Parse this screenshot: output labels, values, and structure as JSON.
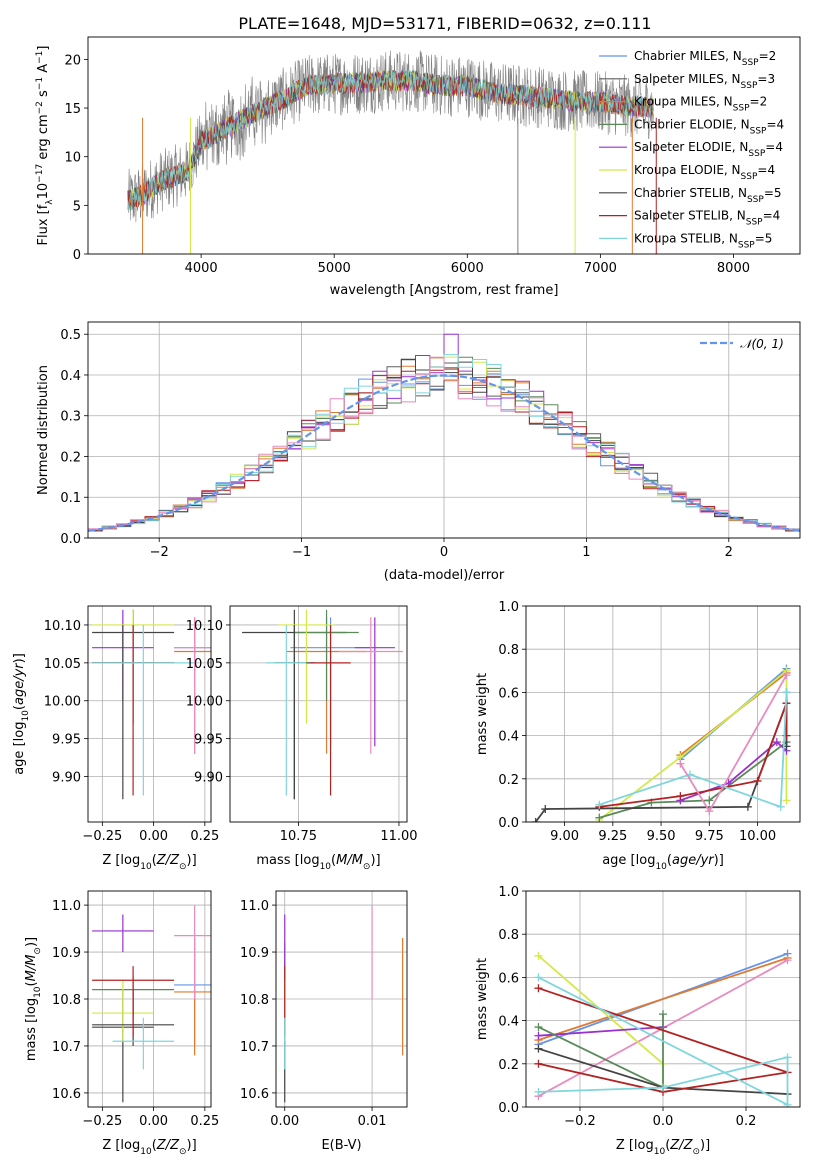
{
  "title": "PLATE=1648, MJD=53171, FIBERID=0632, z=0.111",
  "colors": {
    "chabrier_miles": "#6495ed",
    "salpeter_miles": "#5f5f5f",
    "kroupa_miles": "#e07a30",
    "chabrier_elodie": "#5a8a5a",
    "salpeter_elodie": "#9932cc",
    "kroupa_elodie": "#d4e84a",
    "chabrier_stelib": "#444444",
    "salpeter_stelib": "#b22222",
    "kroupa_stelib": "#7fd6dc",
    "pink": "#e88bbf",
    "normal": "#6495ed"
  },
  "chart_data": [
    {
      "id": "spectrum",
      "type": "line",
      "xlabel": "wavelength [Angstrom, rest frame]",
      "ylabel": "Flux [f$_\\lambda$10$^{-17}$ erg cm$^{-2}$ s$^{-1}$ A$^{-1}$]",
      "xlim": [
        3150,
        8500
      ],
      "ylim": [
        0,
        22.3
      ],
      "xticks": [
        4000,
        5000,
        6000,
        7000,
        8000
      ],
      "yticks": [
        0,
        5,
        10,
        15,
        20
      ],
      "legend": [
        {
          "label": "Chabrier MILES, N",
          "sub": "SSP",
          "tail": "=2",
          "color": "#6495ed"
        },
        {
          "label": "Salpeter MILES, N",
          "sub": "SSP",
          "tail": "=3",
          "color": "#5f5f5f"
        },
        {
          "label": "Kroupa MILES, N",
          "sub": "SSP",
          "tail": "=2",
          "color": "#e07a30"
        },
        {
          "label": "Chabrier ELODIE, N",
          "sub": "SSP",
          "tail": "=4",
          "color": "#5a8a5a"
        },
        {
          "label": "Salpeter ELODIE, N",
          "sub": "SSP",
          "tail": "=4",
          "color": "#9932cc"
        },
        {
          "label": "Kroupa ELODIE, N",
          "sub": "SSP",
          "tail": "=4",
          "color": "#d4e84a"
        },
        {
          "label": "Chabrier STELIB, N",
          "sub": "SSP",
          "tail": "=5",
          "color": "#444444"
        },
        {
          "label": "Salpeter STELIB, N",
          "sub": "SSP",
          "tail": "=4",
          "color": "#b22222"
        },
        {
          "label": "Kroupa STELIB, N",
          "sub": "SSP",
          "tail": "=5",
          "color": "#7fd6dc"
        }
      ],
      "continuum": [
        [
          3450,
          5.5
        ],
        [
          3550,
          6.0
        ],
        [
          3700,
          7.5
        ],
        [
          3800,
          8.0
        ],
        [
          3900,
          8.5
        ],
        [
          4000,
          11.5
        ],
        [
          4200,
          13.0
        ],
        [
          4400,
          14.5
        ],
        [
          4600,
          15.8
        ],
        [
          4800,
          17.3
        ],
        [
          5000,
          17.5
        ],
        [
          5200,
          17.6
        ],
        [
          5400,
          17.8
        ],
        [
          5600,
          17.8
        ],
        [
          5800,
          17.3
        ],
        [
          6000,
          17.3
        ],
        [
          6200,
          16.6
        ],
        [
          6400,
          16.3
        ],
        [
          6600,
          16.1
        ],
        [
          6800,
          15.7
        ],
        [
          7000,
          15.6
        ],
        [
          7200,
          15.2
        ],
        [
          7400,
          15.0
        ]
      ]
    },
    {
      "id": "residuals",
      "type": "line",
      "xlabel": "(data-model)/error",
      "ylabel": "Normed distribution",
      "xlim": [
        -2.5,
        2.5
      ],
      "ylim": [
        0,
        0.53
      ],
      "xticks": [
        -2,
        -1,
        0,
        1,
        2
      ],
      "yticks": [
        0.0,
        0.1,
        0.2,
        0.3,
        0.4,
        0.5
      ],
      "legend_label": "N(0,1)"
    },
    {
      "id": "age_vs_Z",
      "type": "scatter",
      "xlabel": "Z [log10(Z/Z⊙)]",
      "ylabel": "age  [log10(age/yr)]",
      "xlim": [
        -0.32,
        0.28
      ],
      "ylim": [
        9.84,
        10.125
      ],
      "xticks": [
        -0.25,
        0.0,
        0.25
      ],
      "yticks": [
        9.9,
        9.95,
        10.0,
        10.05,
        10.1
      ],
      "points": [
        {
          "x": 0.2,
          "y": 10.07,
          "xerr": 0.1,
          "ylo": 9.94,
          "yhi": 10.11,
          "color": "#6495ed"
        },
        {
          "x": -0.1,
          "y": 10.09,
          "xerr": 0.2,
          "ylo": 9.97,
          "yhi": 10.12,
          "color": "#444444"
        },
        {
          "x": 0.2,
          "y": 10.065,
          "xerr": 0.1,
          "ylo": 9.93,
          "yhi": 10.11,
          "color": "#e07a30"
        },
        {
          "x": -0.1,
          "y": 10.05,
          "xerr": 0.2,
          "ylo": 10.0,
          "yhi": 10.12,
          "color": "#5a8a5a"
        },
        {
          "x": -0.15,
          "y": 10.07,
          "xerr": 0.15,
          "ylo": 10.0,
          "yhi": 10.12,
          "color": "#9932cc"
        },
        {
          "x": -0.1,
          "y": 10.1,
          "xerr": 0.2,
          "ylo": 9.97,
          "yhi": 10.12,
          "color": "#d4e84a"
        },
        {
          "x": -0.15,
          "y": 10.05,
          "xerr": 0.15,
          "ylo": 9.87,
          "yhi": 10.1,
          "color": "#444444"
        },
        {
          "x": -0.1,
          "y": 10.05,
          "xerr": 0.2,
          "ylo": 9.875,
          "yhi": 10.1,
          "color": "#b22222"
        },
        {
          "x": -0.05,
          "y": 10.05,
          "xerr": 0.25,
          "ylo": 9.875,
          "yhi": 10.1,
          "color": "#7fd6dc"
        },
        {
          "x": 0.2,
          "y": 10.07,
          "xerr": 0.1,
          "ylo": 9.93,
          "yhi": 10.11,
          "color": "#e88bbf"
        }
      ]
    },
    {
      "id": "age_vs_mass",
      "type": "scatter",
      "xlabel": "mass [log10(M/M⊙)]",
      "ylabel": "",
      "xlim": [
        10.58,
        11.02
      ],
      "ylim": [
        9.84,
        10.125
      ],
      "xticks": [
        10.75,
        11.0
      ],
      "yticks": [
        9.9,
        9.95,
        10.0,
        10.05,
        10.1
      ],
      "points": [
        {
          "x": 10.83,
          "y": 10.07,
          "xerr": 0.1,
          "ylo": 9.94,
          "yhi": 10.11,
          "color": "#6495ed"
        },
        {
          "x": 10.74,
          "y": 10.09,
          "xerr": 0.13,
          "ylo": 9.87,
          "yhi": 10.12,
          "color": "#444444"
        },
        {
          "x": 10.82,
          "y": 10.065,
          "xerr": 0.1,
          "ylo": 9.93,
          "yhi": 10.11,
          "color": "#e07a30"
        },
        {
          "x": 10.82,
          "y": 10.09,
          "xerr": 0.08,
          "ylo": 10.0,
          "yhi": 10.12,
          "color": "#5a8a5a"
        },
        {
          "x": 10.94,
          "y": 10.07,
          "xerr": 0.05,
          "ylo": 9.94,
          "yhi": 10.11,
          "color": "#9932cc"
        },
        {
          "x": 10.77,
          "y": 10.1,
          "xerr": 0.07,
          "ylo": 9.97,
          "yhi": 10.12,
          "color": "#d4e84a"
        },
        {
          "x": 10.74,
          "y": 10.05,
          "xerr": 0.05,
          "ylo": 9.87,
          "yhi": 10.1,
          "color": "#444444"
        },
        {
          "x": 10.83,
          "y": 10.05,
          "xerr": 0.05,
          "ylo": 9.875,
          "yhi": 10.1,
          "color": "#b22222"
        },
        {
          "x": 10.72,
          "y": 10.05,
          "xerr": 0.05,
          "ylo": 9.875,
          "yhi": 10.1,
          "color": "#7fd6dc"
        },
        {
          "x": 10.93,
          "y": 10.065,
          "xerr": 0.08,
          "ylo": 9.93,
          "yhi": 10.11,
          "color": "#e88bbf"
        }
      ]
    },
    {
      "id": "massweight_vs_age",
      "type": "line",
      "xlabel": "age  [log10(age/yr)]",
      "ylabel": "mass weight",
      "xlim": [
        8.8,
        10.22
      ],
      "ylim": [
        0.0,
        1.0
      ],
      "xticks": [
        9.0,
        9.25,
        9.5,
        9.75,
        10.0
      ],
      "yticks": [
        0.0,
        0.2,
        0.4,
        0.6,
        0.8,
        1.0
      ],
      "series": [
        {
          "color": "#6495ed",
          "x": [
            9.6,
            10.15
          ],
          "y": [
            0.29,
            0.71
          ]
        },
        {
          "color": "#e07a30",
          "x": [
            9.6,
            10.15
          ],
          "y": [
            0.31,
            0.69
          ]
        },
        {
          "color": "#d4e84a",
          "x": [
            9.18,
            9.6,
            10.15,
            10.15
          ],
          "y": [
            0.01,
            0.3,
            0.7,
            0.1
          ]
        },
        {
          "color": "#5a8a5a",
          "x": [
            9.18,
            9.45,
            9.75,
            10.15,
            10.15
          ],
          "y": [
            0.02,
            0.09,
            0.1,
            0.37,
            0.6
          ]
        },
        {
          "color": "#9932cc",
          "x": [
            9.6,
            9.85,
            10.1,
            10.15
          ],
          "y": [
            0.1,
            0.18,
            0.37,
            0.33
          ]
        },
        {
          "color": "#444444",
          "x": [
            8.85,
            8.9,
            9.95,
            10.15,
            10.15
          ],
          "y": [
            0.0,
            0.06,
            0.07,
            0.55,
            0.35
          ]
        },
        {
          "color": "#b22222",
          "x": [
            9.18,
            9.6,
            10.0,
            10.15,
            10.15
          ],
          "y": [
            0.07,
            0.12,
            0.19,
            0.55,
            0.4
          ]
        },
        {
          "color": "#7fd6dc",
          "x": [
            9.18,
            9.65,
            10.12,
            10.15
          ],
          "y": [
            0.08,
            0.22,
            0.07,
            0.6
          ]
        },
        {
          "color": "#e88bbf",
          "x": [
            9.6,
            9.75,
            10.15
          ],
          "y": [
            0.27,
            0.05,
            0.68
          ]
        }
      ]
    },
    {
      "id": "mass_vs_Z",
      "type": "scatter",
      "xlabel": "Z [log10(Z/Z⊙)]",
      "ylabel": "mass [log10(M/M⊙)]",
      "xlim": [
        -0.32,
        0.28
      ],
      "ylim": [
        10.57,
        11.03
      ],
      "xticks": [
        -0.25,
        0.0,
        0.25
      ],
      "yticks": [
        10.6,
        10.7,
        10.8,
        10.9,
        11.0
      ],
      "points": [
        {
          "x": 0.2,
          "y": 10.83,
          "xerr": 0.1,
          "ylo": 10.7,
          "yhi": 10.92,
          "color": "#6495ed"
        },
        {
          "x": -0.15,
          "y": 10.74,
          "xerr": 0.15,
          "ylo": 10.58,
          "yhi": 10.82,
          "color": "#444444"
        },
        {
          "x": 0.2,
          "y": 10.815,
          "xerr": 0.1,
          "ylo": 10.68,
          "yhi": 10.93,
          "color": "#e07a30"
        },
        {
          "x": -0.1,
          "y": 10.82,
          "xerr": 0.2,
          "ylo": 10.76,
          "yhi": 10.85,
          "color": "#5a8a5a"
        },
        {
          "x": -0.15,
          "y": 10.945,
          "xerr": 0.15,
          "ylo": 10.9,
          "yhi": 10.98,
          "color": "#9932cc"
        },
        {
          "x": -0.15,
          "y": 10.77,
          "xerr": 0.15,
          "ylo": 10.71,
          "yhi": 10.84,
          "color": "#d4e84a"
        },
        {
          "x": -0.1,
          "y": 10.745,
          "xerr": 0.2,
          "ylo": 10.7,
          "yhi": 10.82,
          "color": "#444444"
        },
        {
          "x": -0.1,
          "y": 10.84,
          "xerr": 0.2,
          "ylo": 10.72,
          "yhi": 10.87,
          "color": "#b22222"
        },
        {
          "x": -0.05,
          "y": 10.71,
          "xerr": 0.15,
          "ylo": 10.65,
          "yhi": 10.76,
          "color": "#7fd6dc"
        },
        {
          "x": 0.2,
          "y": 10.935,
          "xerr": 0.1,
          "ylo": 10.8,
          "yhi": 11.0,
          "color": "#e88bbf"
        }
      ]
    },
    {
      "id": "mass_vs_ebv",
      "type": "scatter",
      "xlabel": "E(B-V)",
      "ylabel": "",
      "xlim": [
        -0.001,
        0.014
      ],
      "ylim": [
        10.57,
        11.03
      ],
      "xticks": [
        0.0,
        0.01
      ],
      "yticks": [
        10.6,
        10.7,
        10.8,
        10.9,
        11.0
      ],
      "points": [
        {
          "x": 0.0,
          "ylo": 10.7,
          "yhi": 10.92,
          "color": "#6495ed"
        },
        {
          "x": 0.0,
          "ylo": 10.58,
          "yhi": 10.82,
          "color": "#444444"
        },
        {
          "x": 0.0135,
          "ylo": 10.68,
          "yhi": 10.93,
          "color": "#e07a30"
        },
        {
          "x": 0.0,
          "ylo": 10.8,
          "yhi": 10.88,
          "color": "#5a8a5a"
        },
        {
          "x": 0.0,
          "ylo": 10.87,
          "yhi": 10.98,
          "color": "#9932cc"
        },
        {
          "x": 0.0,
          "ylo": 10.71,
          "yhi": 10.84,
          "color": "#d4e84a"
        },
        {
          "x": 0.0,
          "ylo": 10.72,
          "yhi": 10.87,
          "color": "#b22222"
        },
        {
          "x": 0.0,
          "ylo": 10.65,
          "yhi": 10.76,
          "color": "#7fd6dc"
        },
        {
          "x": 0.01,
          "ylo": 10.8,
          "yhi": 11.0,
          "color": "#e88bbf"
        }
      ]
    },
    {
      "id": "massweight_vs_Z",
      "type": "line",
      "xlabel": "Z [log10(Z/Z⊙)]",
      "ylabel": "mass weight",
      "xlim": [
        -0.33,
        0.33
      ],
      "ylim": [
        0.0,
        1.0
      ],
      "xticks": [
        -0.2,
        0.0,
        0.2
      ],
      "yticks": [
        0.0,
        0.2,
        0.4,
        0.6,
        0.8,
        1.0
      ],
      "series": [
        {
          "color": "#6495ed",
          "x": [
            -0.3,
            0.3
          ],
          "y": [
            0.29,
            0.71
          ]
        },
        {
          "color": "#e07a30",
          "x": [
            -0.3,
            0.3
          ],
          "y": [
            0.31,
            0.69
          ]
        },
        {
          "color": "#e88bbf",
          "x": [
            -0.3,
            0.3
          ],
          "y": [
            0.05,
            0.68
          ]
        },
        {
          "color": "#d4e84a",
          "x": [
            -0.3,
            0.0,
            0.0
          ],
          "y": [
            0.7,
            0.2,
            0.1
          ]
        },
        {
          "color": "#9932cc",
          "x": [
            -0.3,
            0.0
          ],
          "y": [
            0.33,
            0.37
          ]
        },
        {
          "color": "#5a8a5a",
          "x": [
            -0.3,
            0.0,
            0.0
          ],
          "y": [
            0.37,
            0.09,
            0.43
          ]
        },
        {
          "color": "#444444",
          "x": [
            -0.3,
            0.0,
            0.3
          ],
          "y": [
            0.27,
            0.09,
            0.06
          ]
        },
        {
          "color": "#b22222",
          "x": [
            -0.3,
            0.0,
            0.3,
            -0.3
          ],
          "y": [
            0.2,
            0.07,
            0.16,
            0.55
          ]
        },
        {
          "color": "#7fd6dc",
          "x": [
            -0.3,
            0.0,
            0.3,
            0.3,
            -0.3
          ],
          "y": [
            0.07,
            0.09,
            0.23,
            0.01,
            0.6
          ]
        }
      ]
    }
  ]
}
